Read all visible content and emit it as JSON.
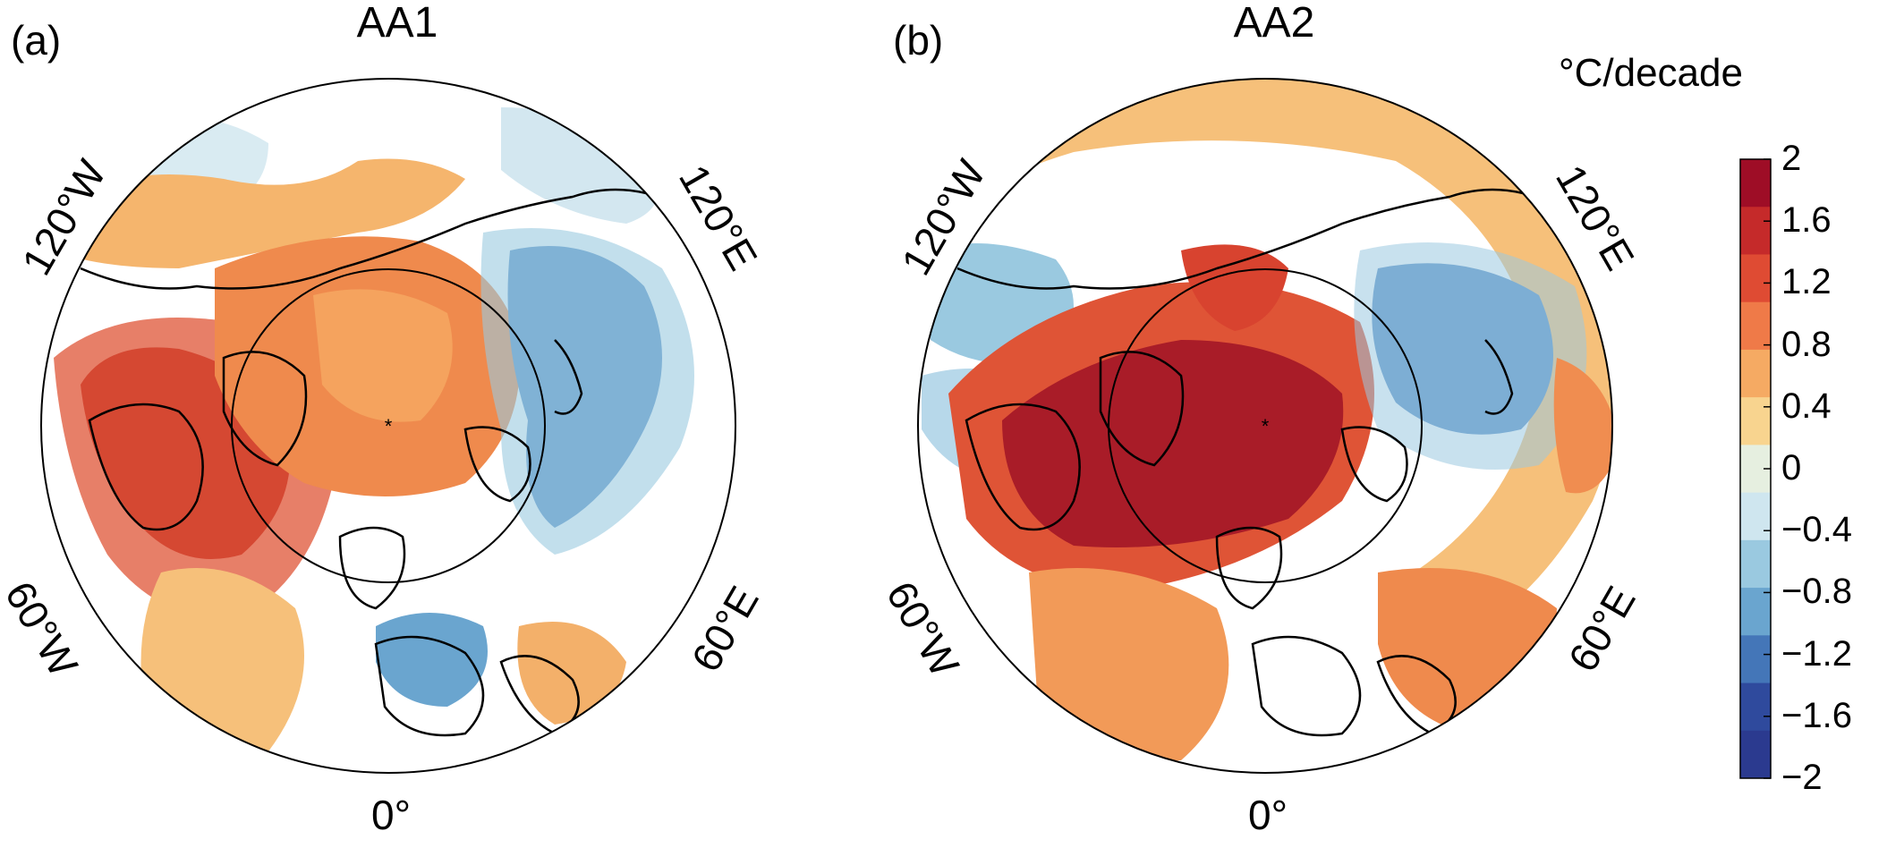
{
  "panels": [
    {
      "id": "a",
      "tag": "(a)",
      "title": "AA1",
      "lon_labels": {
        "w120": "120°W",
        "e120": "120°E",
        "w60": "60°W",
        "e60": "60°E",
        "zero": "0°"
      }
    },
    {
      "id": "b",
      "tag": "(b)",
      "title": "AA2",
      "lon_labels": {
        "w120": "120°W",
        "e120": "120°E",
        "w60": "60°W",
        "e60": "60°E",
        "zero": "0°"
      }
    }
  ],
  "colorbar": {
    "unit": "°C/decade",
    "range": [
      -2,
      2
    ],
    "tick_labels": [
      "2",
      "1.6",
      "1.2",
      "0.8",
      "0.4",
      "0",
      "−0.4",
      "−0.8",
      "−1.2",
      "−1.6",
      "−2"
    ],
    "colors": [
      "#9e0d26",
      "#c52a2a",
      "#df4b33",
      "#ef7a48",
      "#f5aa63",
      "#f8d48f",
      "#e6efe0",
      "#cfe6ef",
      "#9ac9e0",
      "#6aa5cf",
      "#4476b8",
      "#2f4a9d",
      "#2b3a8f"
    ]
  },
  "projection": "north-polar-stereographic"
}
